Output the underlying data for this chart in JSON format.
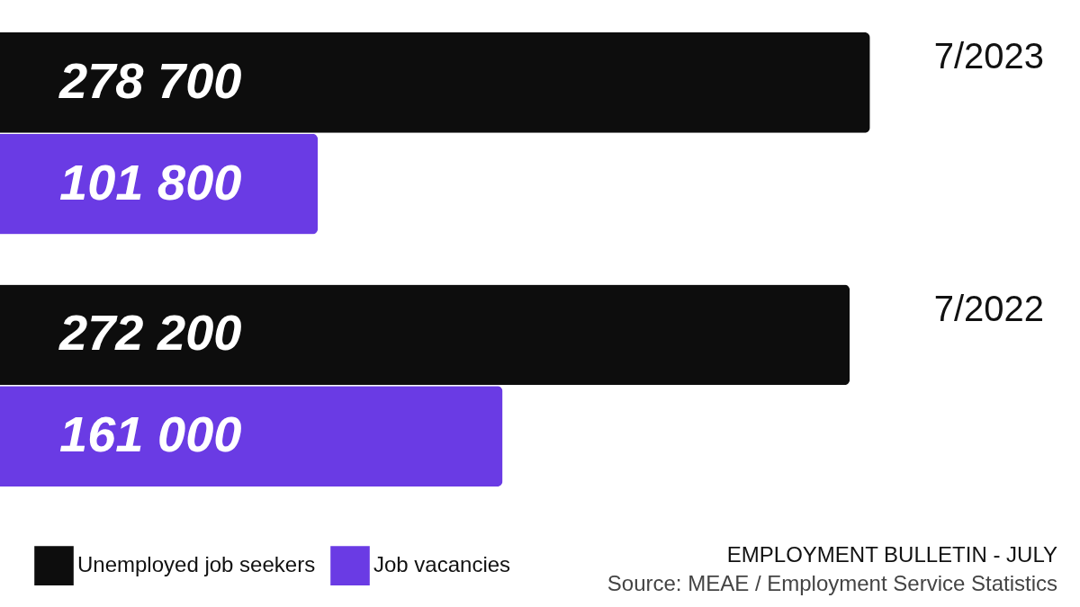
{
  "chart_data": {
    "type": "bar",
    "orientation": "horizontal",
    "title": "EMPLOYMENT BULLETIN - JULY",
    "annotations": [
      "Source: MEAE / Employment Service Statistics"
    ],
    "categories": [
      "7/2023",
      "7/2022"
    ],
    "series": [
      {
        "name": "Unemployed job seekers",
        "color": "#0d0d0d",
        "values": [
          278700,
          272200
        ],
        "value_labels": [
          "278 700",
          "272 200"
        ]
      },
      {
        "name": "Job vacancies",
        "color": "#6a3be4",
        "values": [
          101800,
          161000
        ],
        "value_labels": [
          "101 800",
          "161 000"
        ]
      }
    ],
    "legend": "bottom left",
    "tick_labels": "y"
  }
}
